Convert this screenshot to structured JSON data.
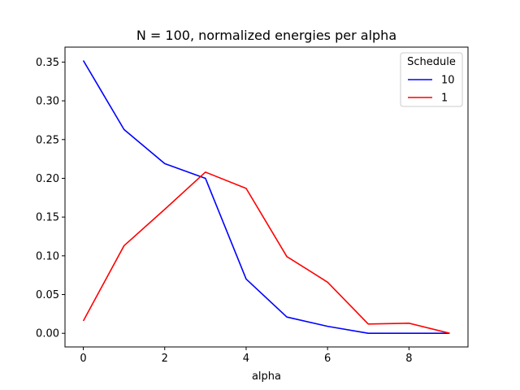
{
  "chart_data": {
    "type": "line",
    "title": "N = 100, normalized energies per alpha",
    "xlabel": "alpha",
    "ylabel": "",
    "xlim": [
      -0.45,
      9.45
    ],
    "ylim": [
      -0.0176,
      0.3693
    ],
    "xticks": [
      0,
      2,
      4,
      6,
      8
    ],
    "yticks": [
      0.0,
      0.05,
      0.1,
      0.15,
      0.2,
      0.25,
      0.3,
      0.35
    ],
    "x": [
      0,
      1,
      2,
      3,
      4,
      5,
      6,
      7,
      8,
      9
    ],
    "series": [
      {
        "name": "10",
        "color": "#0000ff",
        "values": [
          0.352,
          0.263,
          0.219,
          0.2,
          0.07,
          0.021,
          0.009,
          0.0,
          0.0,
          0.0
        ]
      },
      {
        "name": "1",
        "color": "#ff0000",
        "values": [
          0.016,
          0.113,
          0.16,
          0.208,
          0.187,
          0.099,
          0.066,
          0.012,
          0.013,
          0.0
        ]
      }
    ],
    "legend": {
      "title": "Schedule",
      "position": "top-right"
    },
    "grid": false
  }
}
